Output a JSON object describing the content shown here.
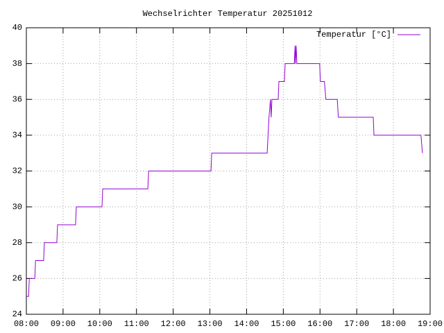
{
  "chart_data": {
    "type": "line",
    "title": "Wechselrichter Temperatur 20251012",
    "x": [
      8.0,
      8.06,
      8.08,
      8.23,
      8.25,
      8.47,
      8.49,
      8.83,
      8.85,
      9.34,
      9.36,
      10.06,
      10.08,
      11.31,
      11.33,
      13.03,
      13.05,
      14.56,
      14.61,
      14.65,
      14.67,
      14.69,
      14.71,
      14.86,
      14.88,
      15.03,
      15.05,
      15.3,
      15.32,
      15.33,
      15.35,
      15.37,
      15.99,
      16.01,
      16.12,
      16.16,
      16.47,
      16.5,
      17.45,
      17.47,
      18.75,
      18.79
    ],
    "series": [
      {
        "name": "Temperatur [°C]",
        "color": "#9400d3",
        "values": [
          25,
          25,
          26,
          26,
          27,
          27,
          28,
          28,
          29,
          29,
          30,
          30,
          31,
          31,
          32,
          32,
          33,
          33,
          35,
          36,
          35,
          36,
          36,
          36,
          37,
          37,
          38,
          38,
          39,
          38,
          39,
          38,
          38,
          37,
          37,
          36,
          36,
          35,
          35,
          34,
          34,
          33
        ]
      }
    ],
    "xlim": [
      8,
      19
    ],
    "xticks": [
      {
        "value": 8,
        "label": "08:00"
      },
      {
        "value": 9,
        "label": "09:00"
      },
      {
        "value": 10,
        "label": "10:00"
      },
      {
        "value": 11,
        "label": "11:00"
      },
      {
        "value": 12,
        "label": "12:00"
      },
      {
        "value": 13,
        "label": "13:00"
      },
      {
        "value": 14,
        "label": "14:00"
      },
      {
        "value": 15,
        "label": "15:00"
      },
      {
        "value": 16,
        "label": "16:00"
      },
      {
        "value": 17,
        "label": "17:00"
      },
      {
        "value": 18,
        "label": "18:00"
      },
      {
        "value": 19,
        "label": "19:00"
      }
    ],
    "ylim": [
      24,
      40
    ],
    "yticks": [
      24,
      26,
      28,
      30,
      32,
      34,
      36,
      38,
      40
    ],
    "grid": true,
    "legend": "top-right"
  }
}
